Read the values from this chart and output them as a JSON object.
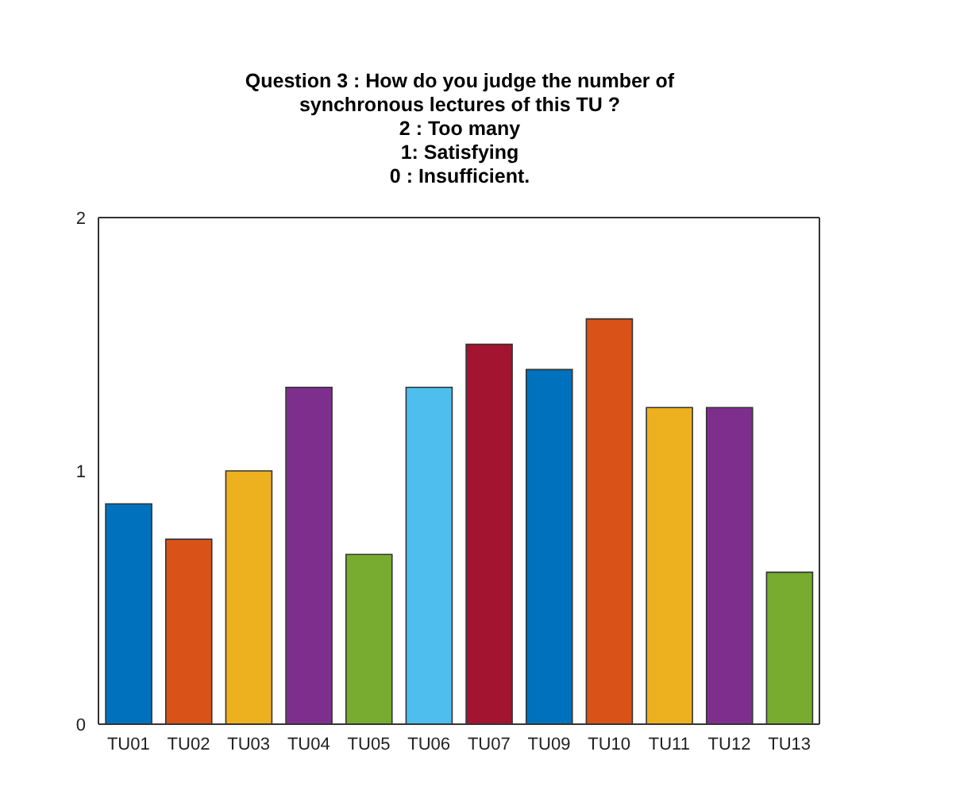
{
  "chart_data": {
    "type": "bar",
    "title": "Question 3 : How do you judge the number of synchronous lectures of this TU ?",
    "subtitle": "2 : Too many\n1: Satisfying\n0 : Insufficient.",
    "categories": [
      "TU01",
      "TU02",
      "TU03",
      "TU04",
      "TU05",
      "TU06",
      "TU07",
      "TU09",
      "TU10",
      "TU11",
      "TU12",
      "TU13"
    ],
    "values": [
      0.87,
      0.73,
      1.0,
      1.33,
      0.67,
      1.33,
      1.5,
      1.4,
      1.6,
      1.25,
      1.25,
      0.6
    ],
    "colors": [
      "#0072bd",
      "#d95319",
      "#edb120",
      "#7e2f8e",
      "#77ac30",
      "#4dbeee",
      "#a2142f",
      "#0072bd",
      "#d95319",
      "#edb120",
      "#7e2f8e",
      "#77ac30"
    ],
    "ylim": [
      0,
      2
    ],
    "yticks": [
      0,
      1,
      2
    ],
    "grid": false,
    "legend": false
  }
}
